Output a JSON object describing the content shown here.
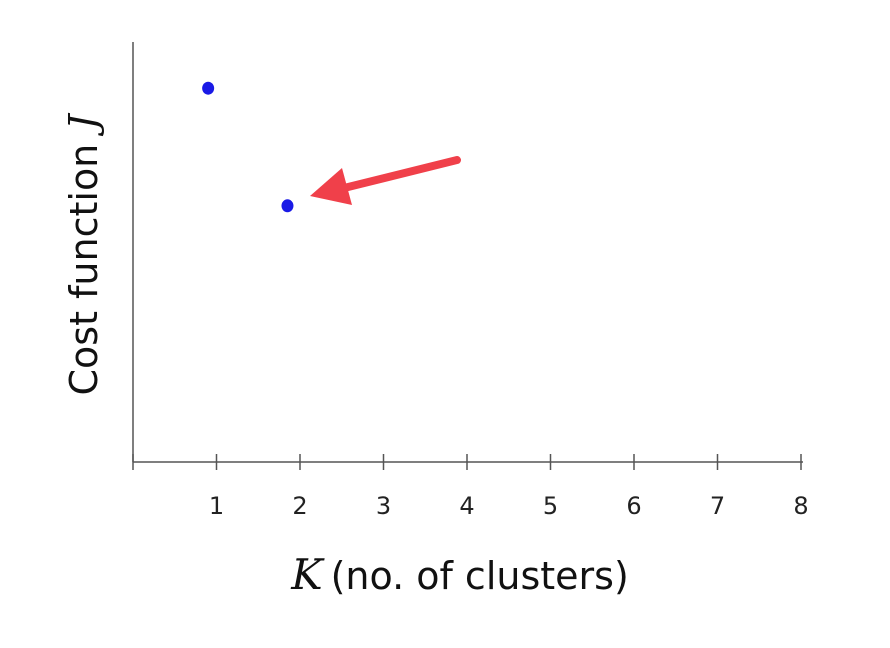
{
  "chart_data": {
    "type": "scatter",
    "ylabel": "Cost function",
    "ylabel_symbol": "J",
    "xlabel_symbol": "K",
    "xlabel": "(no. of clusters)",
    "x": [
      0.9,
      1.85
    ],
    "values": [
      8.9,
      6.1
    ],
    "color": "#1a1ae6",
    "xlim": [
      0,
      8
    ],
    "xticks": [
      1,
      2,
      3,
      4,
      5,
      6,
      7,
      8
    ],
    "ylim": [
      0,
      10
    ],
    "grid": false
  }
}
